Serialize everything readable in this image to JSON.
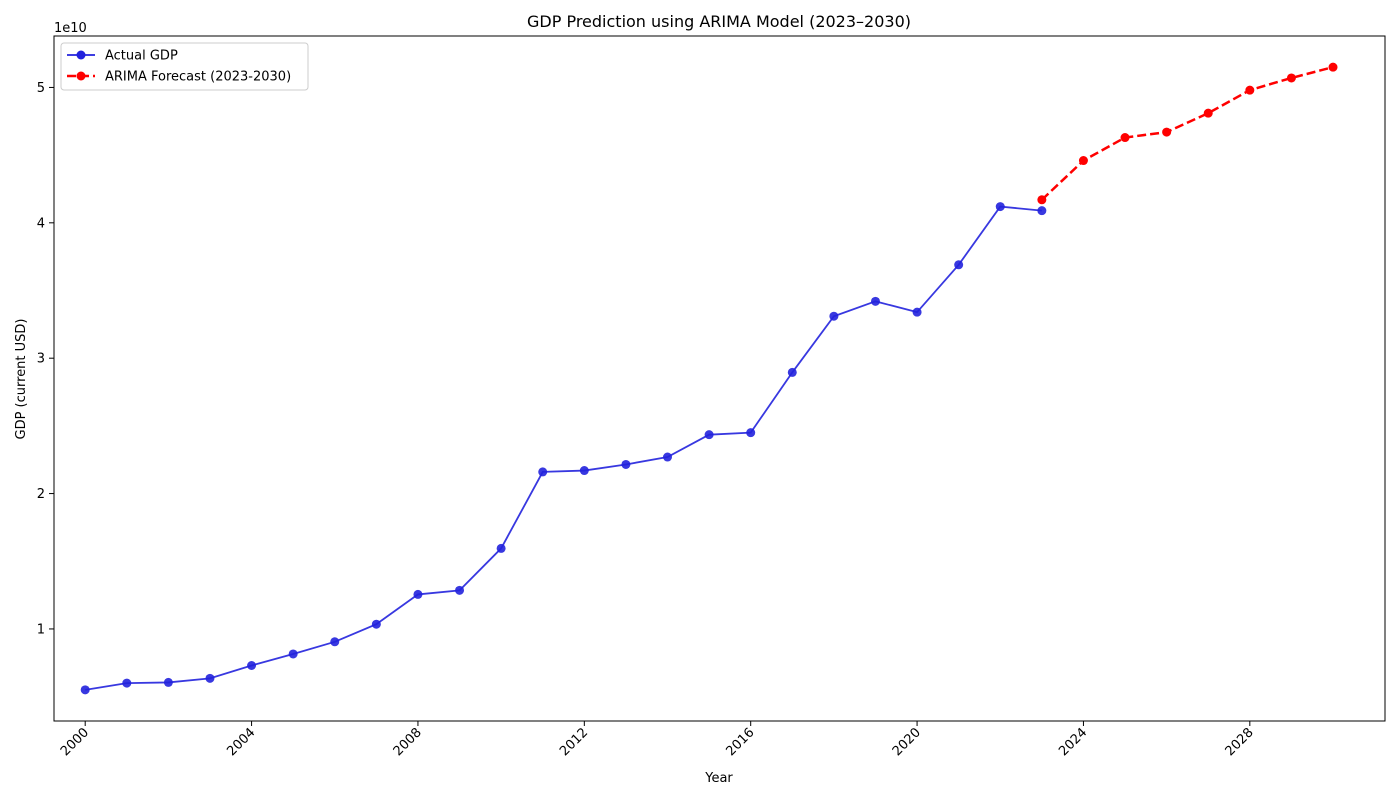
{
  "chart_data": {
    "type": "line",
    "title": "GDP Prediction using ARIMA Model (2023–2030)",
    "xlabel": "Year",
    "ylabel": "GDP (current USD)",
    "y_offset_label": "1e10",
    "xlim": [
      1999.25,
      2031.25
    ],
    "ylim": [
      0.32,
      5.38
    ],
    "x_ticks": [
      2000,
      2004,
      2008,
      2012,
      2016,
      2020,
      2024,
      2028
    ],
    "x_tick_labels": [
      "2000",
      "2004",
      "2008",
      "2012",
      "2016",
      "2020",
      "2024",
      "2028"
    ],
    "y_ticks": [
      1,
      2,
      3,
      4,
      5
    ],
    "y_tick_labels": [
      "1",
      "2",
      "3",
      "4",
      "5"
    ],
    "legend_position": "top-left",
    "grid": false,
    "series": [
      {
        "name": "Actual GDP",
        "color": "#2222dd",
        "style": "solid",
        "x": [
          2000,
          2001,
          2002,
          2003,
          2004,
          2005,
          2006,
          2007,
          2008,
          2009,
          2010,
          2011,
          2012,
          2013,
          2014,
          2015,
          2016,
          2017,
          2018,
          2019,
          2020,
          2021,
          2022,
          2023
        ],
        "values": [
          0.55,
          0.6,
          0.605,
          0.635,
          0.73,
          0.815,
          0.905,
          1.035,
          1.255,
          1.285,
          1.595,
          2.16,
          2.17,
          2.215,
          2.27,
          2.435,
          2.45,
          2.895,
          3.31,
          3.42,
          3.34,
          3.69,
          4.12,
          4.09
        ]
      },
      {
        "name": "ARIMA Forecast (2023-2030)",
        "color": "#ff0000",
        "style": "dashed",
        "x": [
          2023,
          2024,
          2025,
          2026,
          2027,
          2028,
          2029,
          2030
        ],
        "values": [
          4.17,
          4.46,
          4.63,
          4.67,
          4.81,
          4.98,
          5.07,
          5.15
        ]
      }
    ]
  }
}
